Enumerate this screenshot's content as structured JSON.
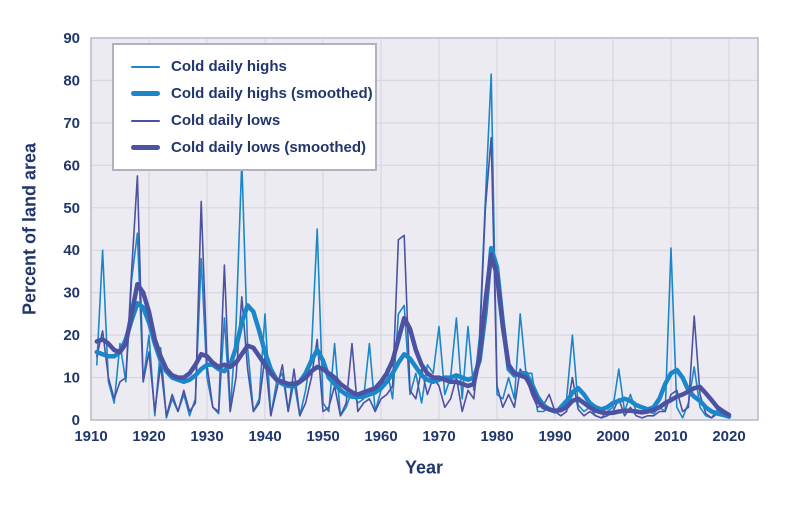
{
  "figure": {
    "title": "",
    "y_axis_title": "Percent of land area",
    "x_axis_title": "Year"
  },
  "colors": {
    "highs_blue": "#1b87c9",
    "lows_purple": "#4c52a2",
    "text_navy": "#21366b",
    "plot_background": "#edebf2",
    "gridline": "#d9d7e1",
    "plot_border": "#bfbdcb",
    "legend_border": "#b3b1bf",
    "page_background": "#ffffff"
  },
  "chart_data": {
    "type": "line",
    "title": "",
    "xlabel": "Year",
    "ylabel": "Percent of land area",
    "xlim": [
      1910,
      2025
    ],
    "ylim": [
      0,
      90
    ],
    "x_ticks": [
      1910,
      1920,
      1930,
      1940,
      1950,
      1960,
      1970,
      1980,
      1990,
      2000,
      2010,
      2020
    ],
    "y_ticks": [
      0,
      10,
      20,
      30,
      40,
      50,
      60,
      70,
      80,
      90
    ],
    "grid": true,
    "legend_position": "top-left",
    "x_years": {
      "start": 1911,
      "end": 2020,
      "step": 1
    },
    "series": [
      {
        "name": "Cold daily highs",
        "color": "#1b87c9",
        "width": 1.6,
        "values": [
          13,
          40,
          9,
          4,
          18,
          9,
          33,
          44,
          9,
          20,
          1,
          17,
          0.5,
          5,
          2,
          6,
          1,
          5,
          38,
          10,
          3,
          1.5,
          24,
          2,
          22,
          61,
          17,
          2,
          5,
          25,
          1,
          9,
          11,
          2,
          9,
          1,
          7,
          16,
          45,
          4,
          2,
          18,
          1,
          3,
          7,
          4,
          5,
          18,
          2,
          7,
          12,
          5,
          25,
          27,
          6,
          11,
          4,
          13,
          11,
          22,
          6,
          10,
          24,
          5,
          22,
          7,
          20,
          52,
          81.5,
          6,
          5,
          10,
          5,
          25,
          11,
          11,
          2,
          2,
          3,
          2,
          3.5,
          5,
          20,
          3.5,
          2,
          3,
          1,
          0.5,
          2,
          3,
          12,
          2,
          6,
          2,
          1.5,
          2,
          1.5,
          3,
          2,
          40.5,
          3,
          0.5,
          4,
          12.5,
          3,
          1,
          0.5,
          2.5,
          1,
          0.5
        ]
      },
      {
        "name": "Cold daily highs (smoothed)",
        "color": "#1b87c9",
        "width": 4.5,
        "values": [
          16,
          15.5,
          15,
          15,
          16,
          19,
          23.5,
          27.5,
          26.5,
          23,
          18,
          14,
          11.5,
          10,
          9.5,
          9,
          9.5,
          10.5,
          12,
          13,
          13,
          12,
          11.5,
          13,
          17,
          23,
          27,
          25.5,
          21,
          16,
          12,
          9.5,
          8.5,
          8,
          8,
          9,
          11,
          14,
          16.5,
          14,
          10,
          8.5,
          7,
          6,
          5.5,
          5.5,
          5.5,
          6,
          6.5,
          7.5,
          9,
          11,
          13.5,
          15.5,
          14.5,
          12.5,
          10.5,
          9.5,
          9,
          9.5,
          10,
          10,
          10.5,
          10,
          9.5,
          10,
          14,
          25,
          40.5,
          36,
          23,
          12,
          10.5,
          11,
          11,
          8.5,
          5.5,
          3.5,
          2.5,
          2,
          2.5,
          4,
          6.5,
          7.5,
          6,
          4,
          3,
          2.5,
          3,
          4,
          4.5,
          5,
          4.5,
          3.5,
          3,
          2.5,
          3,
          5,
          8.5,
          11,
          11.8,
          10,
          7,
          5.5,
          4.5,
          3,
          2,
          1.5,
          1.2,
          0.8
        ]
      },
      {
        "name": "Cold daily lows",
        "color": "#4c52a2",
        "width": 1.6,
        "values": [
          15,
          21,
          10,
          5,
          9,
          10,
          35,
          57.5,
          9,
          16,
          2,
          13,
          1,
          6,
          2,
          7,
          2,
          4,
          51.5,
          13,
          3,
          2,
          36.5,
          2,
          10,
          29,
          12,
          2,
          4,
          15,
          1,
          7,
          13,
          2,
          12,
          1,
          4,
          10,
          19,
          2,
          3,
          8,
          1,
          4,
          18,
          2,
          4,
          5,
          2,
          5,
          6,
          8,
          42.5,
          43.5,
          7,
          5,
          12,
          6,
          10,
          8,
          3,
          5,
          10,
          2,
          7,
          5,
          18,
          50,
          66.5,
          8,
          3,
          6,
          3,
          12,
          10,
          6,
          3,
          3.5,
          6,
          2,
          1,
          2,
          10,
          2.5,
          1,
          2,
          1,
          0.5,
          1,
          2,
          5,
          1,
          3,
          1,
          0.5,
          1,
          1,
          2,
          2,
          6,
          7,
          2,
          3,
          24.5,
          6,
          1.5,
          0.5,
          1.5,
          1,
          0.5
        ]
      },
      {
        "name": "Cold daily lows (smoothed)",
        "color": "#4c52a2",
        "width": 4.5,
        "values": [
          18.5,
          19,
          18,
          16.5,
          16,
          18,
          25,
          32,
          30,
          25.5,
          19,
          15,
          12,
          10.5,
          10,
          10,
          11,
          13,
          15.5,
          15,
          13.5,
          12.5,
          13,
          12.5,
          13.5,
          15.5,
          17.5,
          17,
          15,
          13,
          11,
          9.5,
          9,
          8.5,
          8.5,
          9,
          10,
          11.5,
          12.5,
          12,
          11,
          10,
          8.5,
          7.5,
          6.5,
          6,
          6.5,
          7,
          7.5,
          9,
          11,
          14,
          19,
          24,
          21.5,
          16.5,
          13,
          11,
          10,
          10,
          9.5,
          9,
          9,
          8.5,
          8,
          8.5,
          15,
          28,
          39,
          34,
          22,
          13,
          11,
          10.5,
          10,
          7.5,
          4.5,
          3,
          2.5,
          2.2,
          2.3,
          3,
          4.5,
          5,
          4,
          3,
          2.2,
          1.8,
          1.6,
          1.7,
          2,
          2.2,
          2.2,
          2,
          1.8,
          2,
          2.4,
          3,
          4,
          4.7,
          5.5,
          6,
          6.7,
          7.5,
          7.8,
          6.3,
          4.7,
          3,
          2,
          1.2
        ]
      }
    ]
  }
}
